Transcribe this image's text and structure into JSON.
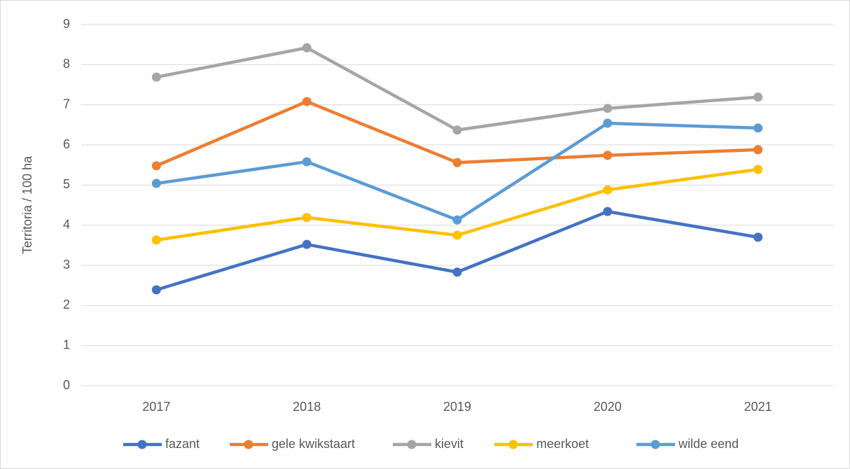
{
  "chart_data": {
    "type": "line",
    "y_label": "Territoria / 100 ha",
    "categories": [
      "2017",
      "2018",
      "2019",
      "2020",
      "2021"
    ],
    "series": [
      {
        "name": "fazant",
        "color": "#4472c4",
        "values": [
          2.39,
          3.52,
          2.83,
          4.34,
          3.7
        ]
      },
      {
        "name": "gele kwikstaart",
        "color": "#ed7d31",
        "values": [
          5.48,
          7.08,
          5.56,
          5.74,
          5.88
        ]
      },
      {
        "name": "kievit",
        "color": "#a5a5a5",
        "values": [
          7.69,
          8.42,
          6.37,
          6.91,
          7.19
        ]
      },
      {
        "name": "meerkoet",
        "color": "#ffc000",
        "values": [
          3.63,
          4.19,
          3.75,
          4.88,
          5.39
        ]
      },
      {
        "name": "wilde eend",
        "color": "#5b9bd5",
        "values": [
          5.04,
          5.58,
          4.13,
          6.54,
          6.42
        ]
      }
    ],
    "ylim": [
      0,
      9
    ],
    "yticks": [
      0,
      1,
      2,
      3,
      4,
      5,
      6,
      7,
      8,
      9
    ],
    "grid": true,
    "legend": "bottom"
  }
}
